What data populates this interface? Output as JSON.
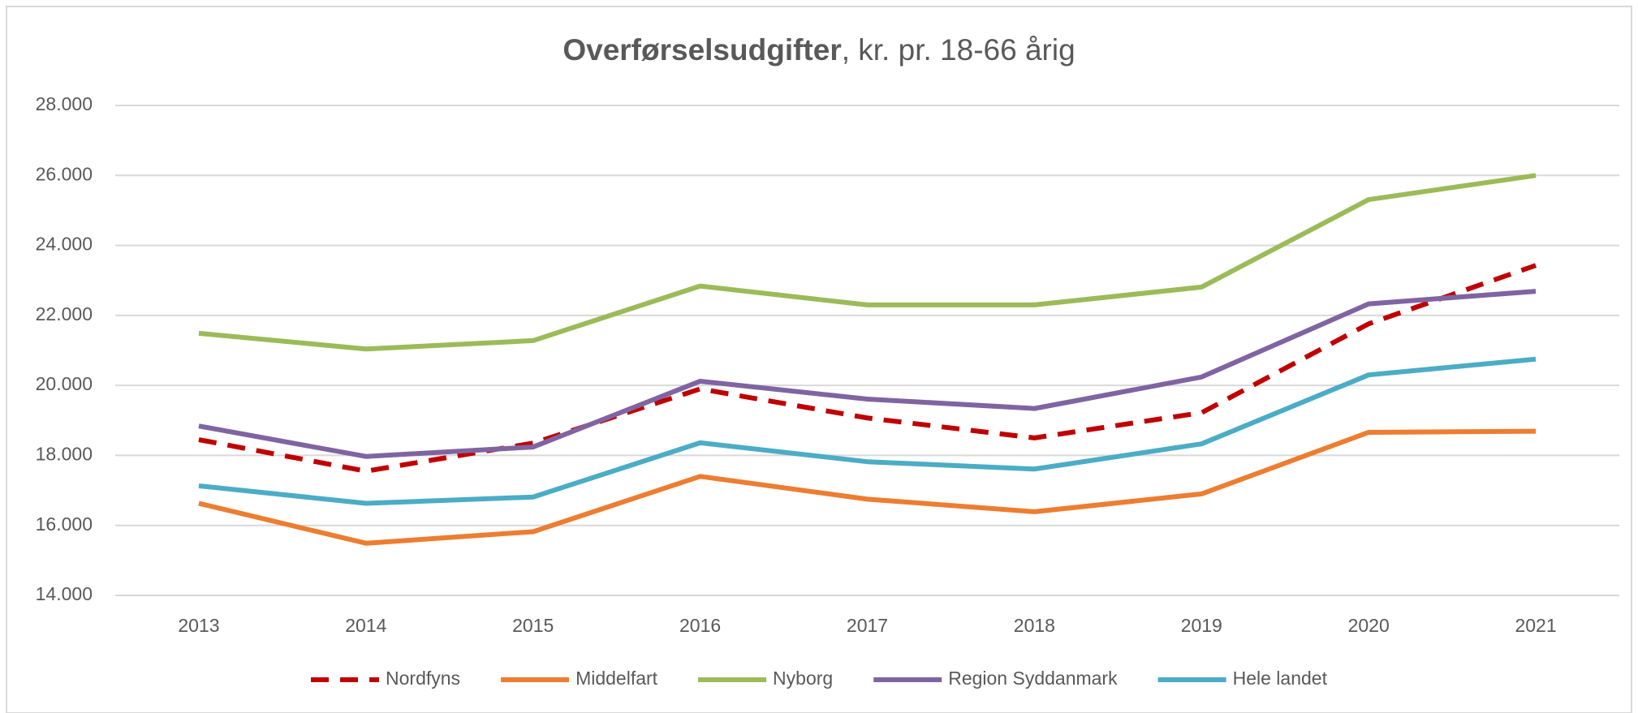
{
  "chart_data": {
    "type": "line",
    "title": [
      "Overførselsudgifter",
      ", kr. pr. 18-66 årig"
    ],
    "categories": [
      "2013",
      "2014",
      "2015",
      "2016",
      "2017",
      "2018",
      "2019",
      "2020",
      "2021"
    ],
    "ylim": [
      14000,
      28000
    ],
    "yticks": [
      {
        "value": 14000,
        "label": "14.000"
      },
      {
        "value": 16000,
        "label": "16.000"
      },
      {
        "value": 18000,
        "label": "18.000"
      },
      {
        "value": 20000,
        "label": "20.000"
      },
      {
        "value": 22000,
        "label": "22.000"
      },
      {
        "value": 24000,
        "label": "24.000"
      },
      {
        "value": 26000,
        "label": "26.000"
      },
      {
        "value": 28000,
        "label": "28.000"
      }
    ],
    "grid": true,
    "legend": "bottom",
    "series": [
      {
        "name": "Nordfyns",
        "color": "#c00000",
        "dashed": true,
        "values": [
          18450,
          17550,
          18350,
          19900,
          19070,
          18500,
          19220,
          21760,
          23430
        ]
      },
      {
        "name": "Middelfart",
        "color": "#ed7d31",
        "values": [
          16630,
          15490,
          15820,
          17400,
          16750,
          16390,
          16900,
          18660,
          18690
        ]
      },
      {
        "name": "Nyborg",
        "color": "#9bbb59",
        "values": [
          21490,
          21040,
          21280,
          22840,
          22300,
          22300,
          22810,
          25310,
          26000
        ]
      },
      {
        "name": "Region Syddanmark",
        "color": "#8064a2",
        "values": [
          18840,
          17970,
          18240,
          20120,
          19610,
          19340,
          20240,
          22330,
          22690
        ]
      },
      {
        "name": "Hele landet",
        "color": "#4bacc6",
        "values": [
          17130,
          16630,
          16810,
          18360,
          17820,
          17610,
          18330,
          20300,
          20750
        ]
      }
    ]
  }
}
